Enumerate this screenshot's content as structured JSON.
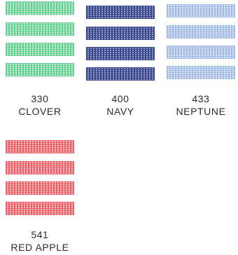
{
  "swatches": [
    {
      "code": "330",
      "name": "CLOVER",
      "color": "#5fcf8f",
      "light": "#c6ecd6"
    },
    {
      "code": "400",
      "name": "NAVY",
      "color": "#2f3f86",
      "light": "#8e98c3"
    },
    {
      "code": "433",
      "name": "NEPTUNE",
      "color": "#9eb8e6",
      "light": "#dde7f8"
    },
    {
      "code": "541",
      "name": "RED APPLE",
      "color": "#ea5b63",
      "light": "#f7c4c7"
    }
  ]
}
